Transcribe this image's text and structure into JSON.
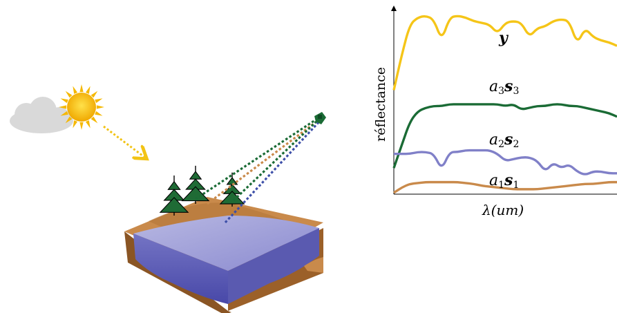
{
  "colors": {
    "sun": "#f5c400",
    "sun_ray": "#f2c314",
    "cloud": "#d9d9d9",
    "soil": "#c98a4b",
    "soil_dark": "#8a5524",
    "water_top": "#a9a9d8",
    "water_front": "#6b6bbf",
    "water_side": "#5858ad",
    "tree": "#1f6b35",
    "ray_green": "#1a6b35",
    "ray_orange": "#c98a4b",
    "ray_blue": "#3d4fa8",
    "curve_y": "#f5c518",
    "curve_s3": "#1a6b35",
    "curve_s2": "#8080c8",
    "curve_s1": "#c98a4b"
  },
  "icons": [
    "cloud-icon",
    "sun-icon",
    "tree-icon",
    "satellite-icon"
  ],
  "chart_data": {
    "type": "line",
    "xlabel": "λ(um)",
    "ylabel": "réflectance",
    "series": [
      {
        "name": "y",
        "label_main": "y",
        "label_sub": "",
        "color": "#f5c518",
        "values": [
          0.58,
          0.78,
          0.95,
          0.99,
          1.0,
          0.98,
          0.86,
          0.99,
          1.0,
          0.99,
          0.97,
          0.96,
          0.95,
          0.9,
          0.96,
          0.97,
          0.96,
          0.88,
          0.93,
          0.94,
          0.97,
          0.98,
          0.97,
          0.84,
          0.93,
          0.88,
          0.86,
          0.85,
          0.83
        ]
      },
      {
        "name": "a3s3",
        "label_main": "a",
        "label_idx": "3",
        "label_vec": "s",
        "label_vec_idx": "3",
        "color": "#1a6b35",
        "values": [
          0.14,
          0.27,
          0.4,
          0.46,
          0.48,
          0.49,
          0.49,
          0.5,
          0.5,
          0.5,
          0.5,
          0.5,
          0.5,
          0.5,
          0.49,
          0.5,
          0.47,
          0.48,
          0.49,
          0.49,
          0.5,
          0.5,
          0.49,
          0.49,
          0.48,
          0.47,
          0.46,
          0.45,
          0.43
        ]
      },
      {
        "name": "a2s2",
        "label_main": "a",
        "label_idx": "2",
        "label_vec": "s",
        "label_vec_idx": "2",
        "color": "#8080c8",
        "values": [
          0.22,
          0.22,
          0.22,
          0.23,
          0.23,
          0.22,
          0.13,
          0.23,
          0.23,
          0.24,
          0.24,
          0.24,
          0.24,
          0.22,
          0.18,
          0.19,
          0.2,
          0.2,
          0.18,
          0.12,
          0.17,
          0.14,
          0.16,
          0.12,
          0.1,
          0.12,
          0.12,
          0.11,
          0.11
        ]
      },
      {
        "name": "a1s1",
        "label_main": "a",
        "label_idx": "1",
        "label_vec": "s",
        "label_vec_idx": "1",
        "color": "#c98a4b",
        "values": [
          0.0,
          0.03,
          0.05,
          0.055,
          0.06,
          0.06,
          0.06,
          0.06,
          0.06,
          0.055,
          0.05,
          0.04,
          0.035,
          0.03,
          0.025,
          0.02,
          0.02,
          0.02,
          0.02,
          0.025,
          0.03,
          0.035,
          0.04,
          0.045,
          0.05,
          0.05,
          0.055,
          0.06,
          0.06
        ]
      }
    ],
    "ylim": [
      0,
      1.05
    ],
    "grid": false,
    "legend": "inline"
  }
}
